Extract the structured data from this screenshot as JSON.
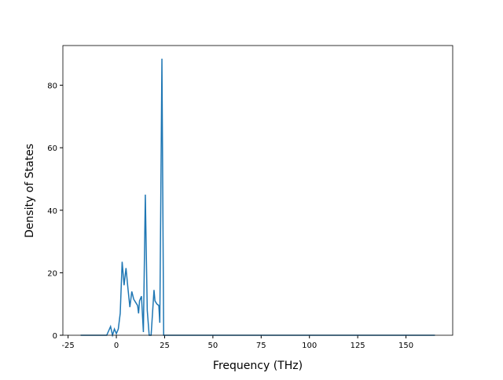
{
  "chart_data": {
    "type": "line",
    "xlabel": "Frequency (THz)",
    "ylabel": "Density of States",
    "x": [
      -18.5,
      -5,
      -3,
      -2,
      -1,
      0,
      1,
      2,
      3,
      4,
      5,
      6,
      7,
      8,
      9,
      10,
      11,
      11.5,
      12,
      13,
      14,
      15,
      16,
      17,
      18,
      19.5,
      20,
      21,
      22,
      22.5,
      23.6,
      24.5,
      26,
      50,
      100,
      165
    ],
    "series": [
      {
        "color": "#1f77b4",
        "values": [
          0,
          0,
          2.8,
          0,
          2,
          0.5,
          2,
          7,
          23.5,
          16,
          21.5,
          15,
          9,
          14,
          11.5,
          10.5,
          9.5,
          7,
          11,
          12.5,
          1,
          45,
          8,
          0,
          0,
          14.5,
          11,
          10,
          9.5,
          4,
          88.5,
          0,
          0,
          0,
          0,
          0
        ]
      }
    ],
    "xlim": [
      -27.7,
      174.2
    ],
    "ylim": [
      0,
      92.7
    ],
    "xticks": [
      -25,
      0,
      25,
      50,
      75,
      100,
      125,
      150
    ],
    "yticks": [
      0,
      20,
      40,
      60,
      80
    ]
  }
}
